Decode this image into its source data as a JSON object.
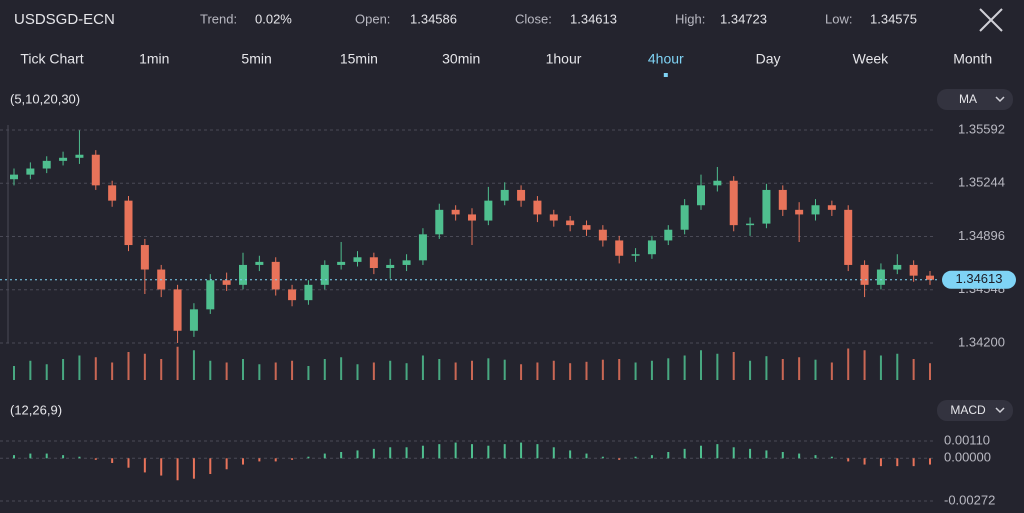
{
  "header": {
    "symbol": "USDSGD-ECN",
    "stats": [
      {
        "label": "Trend:",
        "value": "0.02%"
      },
      {
        "label": "Open:",
        "value": "1.34586"
      },
      {
        "label": "Close:",
        "value": "1.34613"
      },
      {
        "label": "High:",
        "value": "1.34723"
      },
      {
        "label": "Low:",
        "value": "1.34575"
      }
    ]
  },
  "tabs": [
    "Tick Chart",
    "1min",
    "5min",
    "15min",
    "30min",
    "1hour",
    "4hour",
    "Day",
    "Week",
    "Month"
  ],
  "active_tab": 6,
  "chart_data": [
    {
      "type": "candlestick",
      "indicator_params": "(5,10,20,30)",
      "indicator": "MA",
      "up_color": "#4fbf8f",
      "down_color": "#e8735a",
      "open": [
        1.3527,
        1.353,
        1.3534,
        1.3539,
        1.3541,
        1.3543,
        1.3523,
        1.3513,
        1.3484,
        1.3468,
        1.3455,
        1.3428,
        1.3442,
        1.3461,
        1.3458,
        1.3471,
        1.3473,
        1.3455,
        1.3448,
        1.3458,
        1.3471,
        1.3473,
        1.3476,
        1.3469,
        1.3471,
        1.3474,
        1.3491,
        1.3507,
        1.3504,
        1.35,
        1.3513,
        1.352,
        1.3513,
        1.3504,
        1.35,
        1.3497,
        1.3494,
        1.3487,
        1.3477,
        1.3478,
        1.3487,
        1.3494,
        1.351,
        1.3523,
        1.3526,
        1.3497,
        1.3498,
        1.352,
        1.3507,
        1.3504,
        1.351,
        1.3507,
        1.3471,
        1.3458,
        1.3468,
        1.3471,
        1.3464
      ],
      "high": [
        1.3534,
        1.3538,
        1.3542,
        1.3545,
        1.3559,
        1.3546,
        1.3526,
        1.3516,
        1.3488,
        1.3471,
        1.3458,
        1.3446,
        1.3465,
        1.3466,
        1.3479,
        1.3477,
        1.3476,
        1.3458,
        1.3461,
        1.3474,
        1.3486,
        1.348,
        1.3479,
        1.3475,
        1.3478,
        1.3495,
        1.3511,
        1.351,
        1.3508,
        1.3522,
        1.3525,
        1.3523,
        1.3516,
        1.3507,
        1.3503,
        1.35,
        1.3497,
        1.349,
        1.3482,
        1.349,
        1.3497,
        1.3514,
        1.353,
        1.3535,
        1.3529,
        1.3502,
        1.3524,
        1.3523,
        1.3512,
        1.3514,
        1.3513,
        1.351,
        1.3474,
        1.3472,
        1.3478,
        1.3474,
        1.3467
      ],
      "low": [
        1.3523,
        1.3527,
        1.3531,
        1.3536,
        1.3537,
        1.352,
        1.3509,
        1.348,
        1.3452,
        1.345,
        1.342,
        1.3424,
        1.3439,
        1.3454,
        1.3455,
        1.3467,
        1.3451,
        1.3444,
        1.3445,
        1.3455,
        1.3468,
        1.347,
        1.3465,
        1.3462,
        1.3467,
        1.3471,
        1.3488,
        1.35,
        1.3484,
        1.3497,
        1.351,
        1.3509,
        1.3499,
        1.3496,
        1.3493,
        1.349,
        1.3483,
        1.3472,
        1.3473,
        1.3475,
        1.3484,
        1.3491,
        1.3507,
        1.3519,
        1.3493,
        1.349,
        1.3495,
        1.3503,
        1.3486,
        1.35,
        1.3503,
        1.3467,
        1.345,
        1.3455,
        1.3465,
        1.346,
        1.3458
      ],
      "close": [
        1.353,
        1.3534,
        1.3539,
        1.3541,
        1.3543,
        1.3523,
        1.3513,
        1.3484,
        1.3468,
        1.3455,
        1.3428,
        1.3442,
        1.3461,
        1.3458,
        1.3471,
        1.3473,
        1.3455,
        1.3448,
        1.3458,
        1.3471,
        1.3473,
        1.3476,
        1.3469,
        1.3471,
        1.3474,
        1.3491,
        1.3507,
        1.3504,
        1.35,
        1.3513,
        1.352,
        1.3513,
        1.3504,
        1.35,
        1.3497,
        1.3494,
        1.3487,
        1.3477,
        1.3478,
        1.3487,
        1.3494,
        1.351,
        1.3523,
        1.3526,
        1.3497,
        1.3498,
        1.352,
        1.3507,
        1.3504,
        1.351,
        1.3507,
        1.3471,
        1.3458,
        1.3468,
        1.3471,
        1.3464,
        1.34613
      ],
      "last_price": 1.34613,
      "ylim": [
        1.342,
        1.3567
      ],
      "yticks": [
        1.35592,
        1.35244,
        1.34896,
        1.34548,
        {
          "value": 1.342,
          "label": "1.34200"
        }
      ],
      "volume": [
        40,
        55,
        45,
        60,
        70,
        65,
        50,
        80,
        75,
        60,
        95,
        85,
        55,
        50,
        60,
        45,
        50,
        55,
        40,
        60,
        65,
        45,
        50,
        55,
        48,
        70,
        60,
        50,
        55,
        62,
        58,
        45,
        50,
        55,
        48,
        52,
        58,
        60,
        50,
        55,
        62,
        70,
        85,
        75,
        80,
        55,
        68,
        60,
        65,
        58,
        50,
        90,
        85,
        70,
        75,
        60,
        48
      ],
      "volume_lim": [
        0,
        100
      ]
    },
    {
      "type": "histogram",
      "indicator_params": "(12,26,9)",
      "indicator": "MACD",
      "values": [
        0.0002,
        0.0003,
        0.0003,
        0.0002,
        0.0001,
        -0.0001,
        -0.0003,
        -0.0006,
        -0.0009,
        -0.0011,
        -0.0014,
        -0.0013,
        -0.001,
        -0.0007,
        -0.0004,
        -0.0002,
        -0.0002,
        -0.0001,
        0.0001,
        0.0003,
        0.0004,
        0.0005,
        0.0006,
        0.0007,
        0.0007,
        0.0008,
        0.0009,
        0.001,
        0.0009,
        0.0008,
        0.0009,
        0.001,
        0.0009,
        0.0007,
        0.0005,
        0.0003,
        0.0001,
        -0.0001,
        0.0001,
        0.0002,
        0.0004,
        0.0006,
        0.0008,
        0.0009,
        0.0007,
        0.0006,
        0.0005,
        0.0004,
        0.0003,
        0.0002,
        0.0001,
        -0.0002,
        -0.0004,
        -0.0005,
        -0.0005,
        -0.0005,
        -0.0004
      ],
      "up_color": "#4fbf8f",
      "down_color": "#e8735a",
      "ylim": [
        -0.00272,
        0.0011
      ],
      "yticks": [
        {
          "value": 0.0011,
          "label": "0.00110"
        },
        {
          "value": 0,
          "label": "0.00000"
        },
        -0.00272
      ]
    }
  ]
}
